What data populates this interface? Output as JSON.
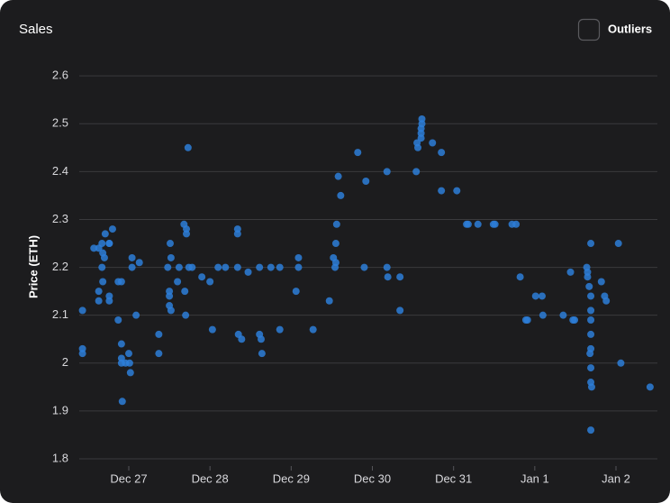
{
  "chart_data": {
    "type": "scatter",
    "title": "Sales",
    "y_label": "Price (ETH)",
    "toggle_label": "Outliers",
    "color": "#2d7ed8",
    "xlim": [
      -0.61,
      6.51
    ],
    "xticks": [
      {
        "value": 0,
        "label": "Dec 27"
      },
      {
        "value": 1,
        "label": "Dec 28"
      },
      {
        "value": 2,
        "label": "Dec 29"
      },
      {
        "value": 3,
        "label": "Dec 30"
      },
      {
        "value": 4,
        "label": "Dec 31"
      },
      {
        "value": 5,
        "label": "Jan 1"
      },
      {
        "value": 6,
        "label": "Jan 2"
      }
    ],
    "ylim": [
      1.8,
      2.65
    ],
    "yticks": [
      1.8,
      1.9,
      2,
      2.1,
      2.2,
      2.3,
      2.4,
      2.5,
      2.6
    ],
    "grid": true,
    "x": [
      -0.57,
      -0.57,
      -0.57,
      -0.43,
      -0.37,
      -0.33,
      -0.37,
      -0.37,
      -0.33,
      -0.32,
      -0.32,
      -0.3,
      -0.29,
      -0.24,
      -0.24,
      -0.2,
      -0.24,
      -0.24,
      -0.13,
      -0.13,
      -0.09,
      -0.09,
      -0.09,
      -0.09,
      -0.08,
      -0.04,
      0,
      0.01,
      0.02,
      0.04,
      0.04,
      0.09,
      0.13,
      0.37,
      0.37,
      0.48,
      0.51,
      0.52,
      0.5,
      0.5,
      0.5,
      0.52,
      0.6,
      0.62,
      0.68,
      0.71,
      0.71,
      0.69,
      0.7,
      0.73,
      0.74,
      0.78,
      0.9,
      1.0,
      1.03,
      1.1,
      1.19,
      1.34,
      1.34,
      1.34,
      1.35,
      1.39,
      1.47,
      1.61,
      1.61,
      1.63,
      1.64,
      1.75,
      1.86,
      1.86,
      2.06,
      2.09,
      2.09,
      2.27,
      2.47,
      2.52,
      2.54,
      2.55,
      2.56,
      2.58,
      2.61,
      2.55,
      2.82,
      2.9,
      2.92,
      3.18,
      3.18,
      3.19,
      3.34,
      3.34,
      3.54,
      3.55,
      3.56,
      3.6,
      3.6,
      3.6,
      3.61,
      3.61,
      3.74,
      3.85,
      3.85,
      4.04,
      4.16,
      4.18,
      4.3,
      4.49,
      4.51,
      4.72,
      4.77,
      4.82,
      4.89,
      4.91,
      5.01,
      5.09,
      5.1,
      5.35,
      5.44,
      5.47,
      5.49,
      5.64,
      5.65,
      5.65,
      5.67,
      5.69,
      5.69,
      5.69,
      5.69,
      5.69,
      5.68,
      5.69,
      5.69,
      5.7,
      5.69,
      5.69,
      5.82,
      5.86,
      5.88,
      6.03,
      6.06,
      6.42
    ],
    "values": [
      2.11,
      2.03,
      2.02,
      2.24,
      2.24,
      2.25,
      2.15,
      2.13,
      2.2,
      2.23,
      2.17,
      2.22,
      2.27,
      2.25,
      2.25,
      2.28,
      2.14,
      2.13,
      2.09,
      2.17,
      2.17,
      2.04,
      2.01,
      2.0,
      1.92,
      2.0,
      2.02,
      2.0,
      1.98,
      2.2,
      2.22,
      2.1,
      2.21,
      2.06,
      2.02,
      2.2,
      2.25,
      2.22,
      2.15,
      2.14,
      2.12,
      2.11,
      2.17,
      2.2,
      2.29,
      2.28,
      2.27,
      2.15,
      2.1,
      2.45,
      2.2,
      2.2,
      2.18,
      2.17,
      2.07,
      2.2,
      2.2,
      2.28,
      2.27,
      2.2,
      2.06,
      2.05,
      2.19,
      2.2,
      2.06,
      2.05,
      2.02,
      2.2,
      2.2,
      2.07,
      2.15,
      2.22,
      2.2,
      2.07,
      2.13,
      2.22,
      2.2,
      2.25,
      2.29,
      2.39,
      2.35,
      2.21,
      2.44,
      2.2,
      2.38,
      2.4,
      2.2,
      2.18,
      2.18,
      2.11,
      2.4,
      2.46,
      2.45,
      2.47,
      2.48,
      2.49,
      2.51,
      2.5,
      2.46,
      2.44,
      2.36,
      2.36,
      2.29,
      2.29,
      2.29,
      2.29,
      2.29,
      2.29,
      2.29,
      2.18,
      2.09,
      2.09,
      2.14,
      2.14,
      2.1,
      2.1,
      2.19,
      2.09,
      2.09,
      2.2,
      2.19,
      2.18,
      2.16,
      2.14,
      2.11,
      2.09,
      2.06,
      2.03,
      2.02,
      1.99,
      1.96,
      1.95,
      1.86,
      2.25,
      2.17,
      2.14,
      2.13,
      2.25,
      2.0,
      1.95
    ]
  }
}
